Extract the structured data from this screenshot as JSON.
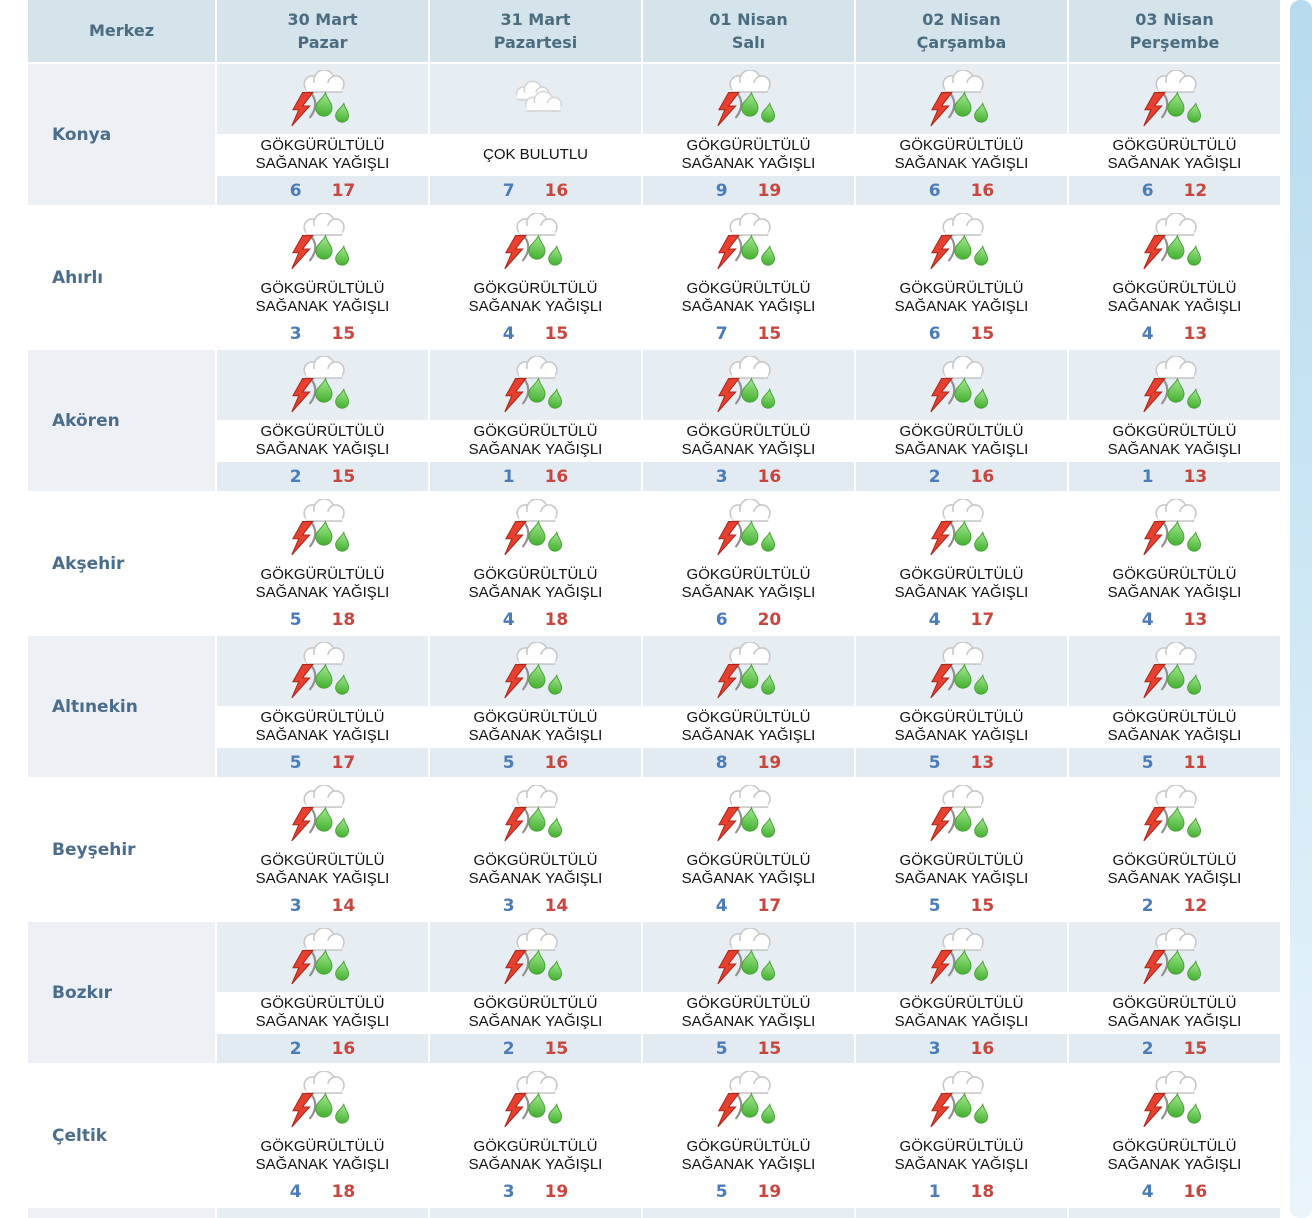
{
  "colors": {
    "header_bg": "#d5e4ea",
    "header_text": "#4c6d80",
    "district_text": "#4a6d8c",
    "row_light_bg": "#edf1f6",
    "icon_band_light_bg": "#e6edf3",
    "temp_band_light_bg": "#e3ebf2",
    "min_temp": "#4a7cba",
    "max_temp": "#c7463e",
    "scroll_strip": "#b7dbee"
  },
  "header": {
    "merkez": "Merkez",
    "days": [
      {
        "date": "30 Mart",
        "weekday": "Pazar"
      },
      {
        "date": "31 Mart",
        "weekday": "Pazartesi"
      },
      {
        "date": "01 Nisan",
        "weekday": "Salı"
      },
      {
        "date": "02 Nisan",
        "weekday": "Çarşamba"
      },
      {
        "date": "03 Nisan",
        "weekday": "Perşembe"
      }
    ]
  },
  "descriptions": {
    "thunderstorm": "GÖKGÜRÜLTÜLÜ SAĞANAK YAĞIŞLI",
    "cloudy": "ÇOK BULUTLU"
  },
  "icon_names": {
    "thunderstorm": "thunderstorm-rain-icon",
    "cloudy": "very-cloudy-icon"
  },
  "rows": [
    {
      "name": "Konya",
      "cells": [
        {
          "icon": "thunderstorm",
          "min": 6,
          "max": 17
        },
        {
          "icon": "cloudy",
          "min": 7,
          "max": 16
        },
        {
          "icon": "thunderstorm",
          "min": 9,
          "max": 19
        },
        {
          "icon": "thunderstorm",
          "min": 6,
          "max": 16
        },
        {
          "icon": "thunderstorm",
          "min": 6,
          "max": 12
        }
      ]
    },
    {
      "name": "Ahırlı",
      "cells": [
        {
          "icon": "thunderstorm",
          "min": 3,
          "max": 15
        },
        {
          "icon": "thunderstorm",
          "min": 4,
          "max": 15
        },
        {
          "icon": "thunderstorm",
          "min": 7,
          "max": 15
        },
        {
          "icon": "thunderstorm",
          "min": 6,
          "max": 15
        },
        {
          "icon": "thunderstorm",
          "min": 4,
          "max": 13
        }
      ]
    },
    {
      "name": "Akören",
      "cells": [
        {
          "icon": "thunderstorm",
          "min": 2,
          "max": 15
        },
        {
          "icon": "thunderstorm",
          "min": 1,
          "max": 16
        },
        {
          "icon": "thunderstorm",
          "min": 3,
          "max": 16
        },
        {
          "icon": "thunderstorm",
          "min": 2,
          "max": 16
        },
        {
          "icon": "thunderstorm",
          "min": 1,
          "max": 13
        }
      ]
    },
    {
      "name": "Akşehir",
      "cells": [
        {
          "icon": "thunderstorm",
          "min": 5,
          "max": 18
        },
        {
          "icon": "thunderstorm",
          "min": 4,
          "max": 18
        },
        {
          "icon": "thunderstorm",
          "min": 6,
          "max": 20
        },
        {
          "icon": "thunderstorm",
          "min": 4,
          "max": 17
        },
        {
          "icon": "thunderstorm",
          "min": 4,
          "max": 13
        }
      ]
    },
    {
      "name": "Altınekin",
      "cells": [
        {
          "icon": "thunderstorm",
          "min": 5,
          "max": 17
        },
        {
          "icon": "thunderstorm",
          "min": 5,
          "max": 16
        },
        {
          "icon": "thunderstorm",
          "min": 8,
          "max": 19
        },
        {
          "icon": "thunderstorm",
          "min": 5,
          "max": 13
        },
        {
          "icon": "thunderstorm",
          "min": 5,
          "max": 11
        }
      ]
    },
    {
      "name": "Beyşehir",
      "cells": [
        {
          "icon": "thunderstorm",
          "min": 3,
          "max": 14
        },
        {
          "icon": "thunderstorm",
          "min": 3,
          "max": 14
        },
        {
          "icon": "thunderstorm",
          "min": 4,
          "max": 17
        },
        {
          "icon": "thunderstorm",
          "min": 5,
          "max": 15
        },
        {
          "icon": "thunderstorm",
          "min": 2,
          "max": 12
        }
      ]
    },
    {
      "name": "Bozkır",
      "cells": [
        {
          "icon": "thunderstorm",
          "min": 2,
          "max": 16
        },
        {
          "icon": "thunderstorm",
          "min": 2,
          "max": 15
        },
        {
          "icon": "thunderstorm",
          "min": 5,
          "max": 15
        },
        {
          "icon": "thunderstorm",
          "min": 3,
          "max": 16
        },
        {
          "icon": "thunderstorm",
          "min": 2,
          "max": 15
        }
      ]
    },
    {
      "name": "Çeltik",
      "cells": [
        {
          "icon": "thunderstorm",
          "min": 4,
          "max": 18
        },
        {
          "icon": "thunderstorm",
          "min": 3,
          "max": 19
        },
        {
          "icon": "thunderstorm",
          "min": 5,
          "max": 19
        },
        {
          "icon": "thunderstorm",
          "min": 1,
          "max": 18
        },
        {
          "icon": "thunderstorm",
          "min": 4,
          "max": 16
        }
      ]
    }
  ],
  "partial_next_row_visible": true
}
